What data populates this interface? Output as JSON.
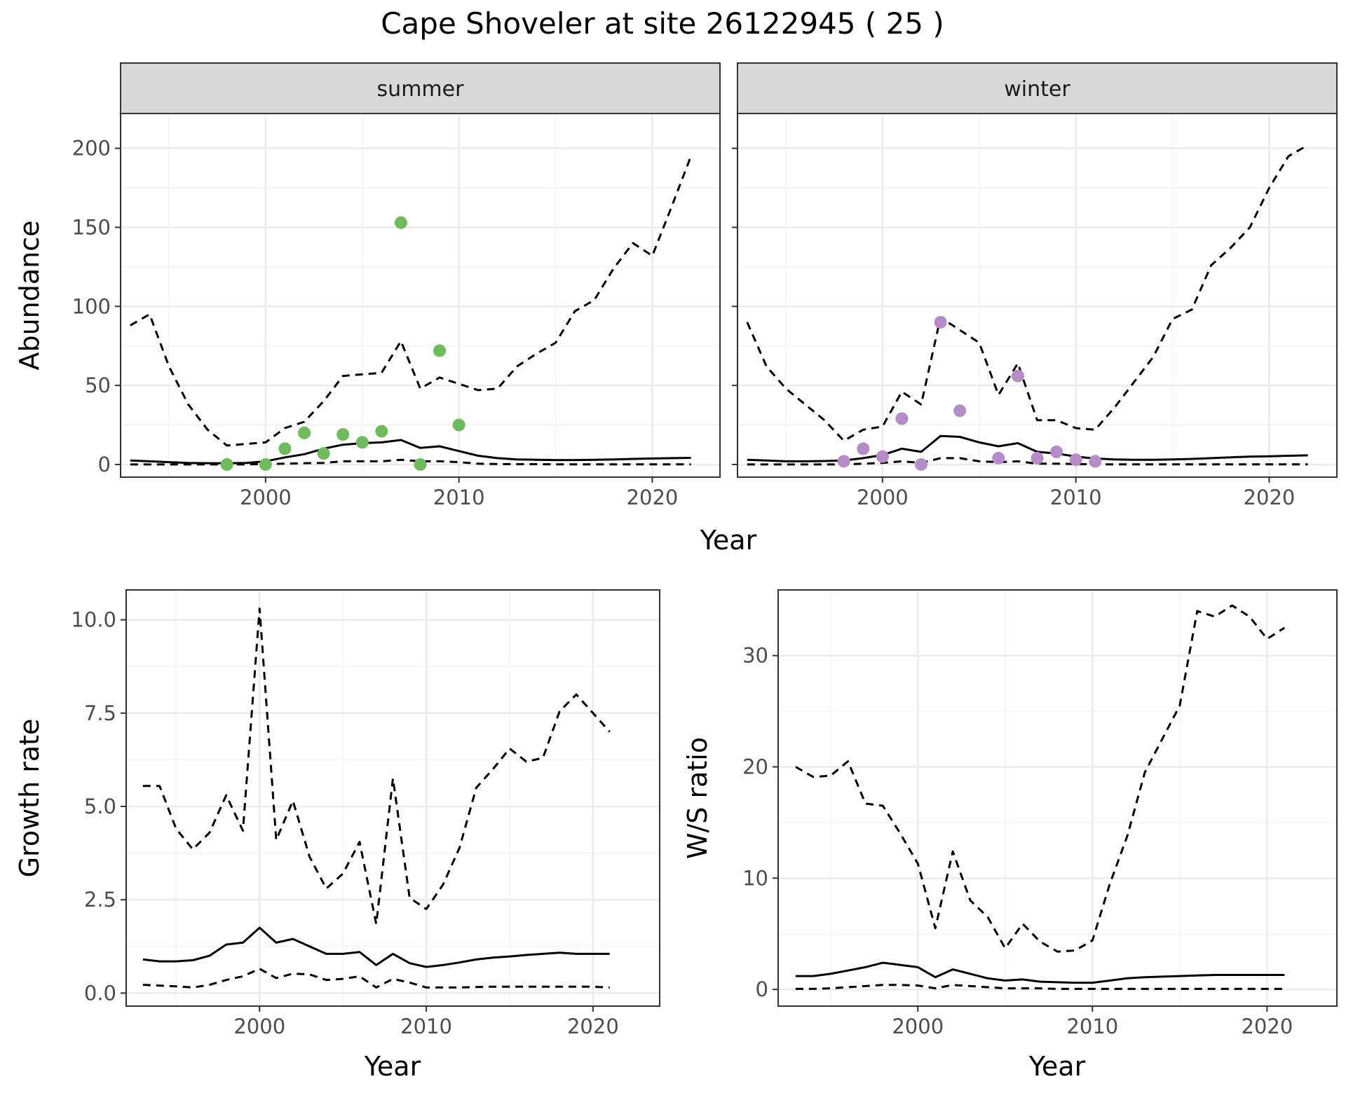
{
  "title": "Cape Shoveler at site 26122945 ( 25 )",
  "colors": {
    "summer_points": "#6dbb5a",
    "winter_points": "#b48cc8",
    "line": "#000000",
    "strip_bg": "#d9d9d9",
    "grid_major": "#ebebeb"
  },
  "chart_data": [
    {
      "type": "line",
      "panel": "abundance-summer",
      "strip": "summer",
      "ylabel": "Abundance",
      "xlabel": "Year",
      "xlim": [
        1992.5,
        2023.5
      ],
      "ylim": [
        -8,
        222
      ],
      "xticks": [
        2000,
        2010,
        2020
      ],
      "yticks": [
        0,
        50,
        100,
        150,
        200
      ],
      "x": [
        1993,
        1994,
        1995,
        1996,
        1997,
        1998,
        1999,
        2000,
        2001,
        2002,
        2003,
        2004,
        2005,
        2006,
        2007,
        2008,
        2009,
        2010,
        2011,
        2012,
        2013,
        2014,
        2015,
        2016,
        2017,
        2018,
        2019,
        2020,
        2021,
        2022
      ],
      "series": [
        {
          "style": "solid",
          "values": [
            2.5,
            2,
            1.5,
            1,
            0.8,
            0.8,
            1,
            2,
            4.5,
            6.5,
            10,
            12.5,
            13.5,
            14,
            15.5,
            10.5,
            11.5,
            8.5,
            5.5,
            4,
            3.2,
            3,
            2.8,
            2.8,
            3,
            3.2,
            3.5,
            3.8,
            4,
            4.2
          ]
        },
        {
          "style": "dashed-lower",
          "values": [
            0,
            0,
            0,
            0,
            0,
            0,
            0,
            0.3,
            0.5,
            0.8,
            1,
            2,
            2,
            2,
            3,
            2,
            2,
            1.5,
            0.5,
            0.3,
            0.2,
            0.2,
            0.1,
            0.1,
            0.1,
            0.1,
            0.1,
            0.1,
            0.1,
            0.1
          ]
        },
        {
          "style": "dashed-upper",
          "values": [
            88,
            95,
            62,
            38,
            22,
            12,
            13,
            14,
            23,
            27,
            40,
            56,
            57,
            58,
            78,
            48,
            55,
            51,
            47,
            48,
            62,
            70,
            77,
            97,
            104,
            124,
            140,
            132,
            163,
            195
          ]
        }
      ],
      "points": {
        "x": [
          1998,
          2000,
          2001,
          2002,
          2003,
          2004,
          2005,
          2006,
          2007,
          2008,
          2009,
          2010
        ],
        "y": [
          0,
          0,
          10,
          20,
          7,
          19,
          14,
          21,
          153,
          0,
          72,
          25
        ]
      }
    },
    {
      "type": "line",
      "panel": "abundance-winter",
      "strip": "winter",
      "xlabel": "Year",
      "xlim": [
        1992.5,
        2023.5
      ],
      "ylim": [
        -8,
        222
      ],
      "xticks": [
        2000,
        2010,
        2020
      ],
      "x": [
        1993,
        1994,
        1995,
        1996,
        1997,
        1998,
        1999,
        2000,
        2001,
        2002,
        2003,
        2004,
        2005,
        2006,
        2007,
        2008,
        2009,
        2010,
        2011,
        2012,
        2013,
        2014,
        2015,
        2016,
        2017,
        2018,
        2019,
        2020,
        2021,
        2022
      ],
      "series": [
        {
          "style": "solid",
          "values": [
            3,
            2.5,
            2,
            2,
            2.2,
            2.5,
            4,
            6,
            10,
            8,
            18,
            17.5,
            14,
            11.5,
            13.5,
            8,
            7,
            5,
            3.8,
            3.2,
            3,
            3,
            3.2,
            3.5,
            4,
            4.5,
            5,
            5.2,
            5.5,
            5.8
          ]
        },
        {
          "style": "dashed-lower",
          "values": [
            0,
            0,
            0,
            0,
            0,
            0,
            0.5,
            1,
            2,
            1,
            4,
            4,
            2,
            1.5,
            2,
            0.5,
            0.5,
            0.3,
            0.1,
            0.1,
            0.1,
            0.1,
            0.1,
            0.1,
            0.1,
            0.1,
            0.1,
            0.1,
            0.1,
            0.1
          ]
        },
        {
          "style": "dashed-upper",
          "values": [
            90,
            62,
            48,
            38,
            28,
            15,
            22,
            24,
            46,
            38,
            93,
            85,
            77,
            44,
            64,
            28,
            28,
            23,
            22,
            36,
            52,
            68,
            92,
            98,
            126,
            137,
            150,
            175,
            195,
            202
          ]
        }
      ],
      "points": {
        "x": [
          1998,
          1999,
          2000,
          2001,
          2002,
          2003,
          2004,
          2006,
          2007,
          2008,
          2009,
          2010,
          2011
        ],
        "y": [
          2,
          10,
          5,
          29,
          0,
          90,
          34,
          4,
          56,
          4,
          8,
          3,
          2
        ]
      }
    },
    {
      "type": "line",
      "panel": "growth-rate",
      "ylabel": "Growth rate",
      "xlabel": "Year",
      "xlim": [
        1992,
        2024
      ],
      "ylim": [
        -0.35,
        10.8
      ],
      "xticks": [
        2000,
        2010,
        2020
      ],
      "yticks": [
        0.0,
        2.5,
        5.0,
        7.5,
        10.0
      ],
      "ytick_labels": [
        "0.0",
        "2.5",
        "5.0",
        "7.5",
        "10.0"
      ],
      "x": [
        1993,
        1994,
        1995,
        1996,
        1997,
        1998,
        1999,
        2000,
        2001,
        2002,
        2003,
        2004,
        2005,
        2006,
        2007,
        2008,
        2009,
        2010,
        2011,
        2012,
        2013,
        2014,
        2015,
        2016,
        2017,
        2018,
        2019,
        2020,
        2021
      ],
      "series": [
        {
          "style": "solid",
          "values": [
            0.9,
            0.85,
            0.85,
            0.88,
            1.0,
            1.3,
            1.35,
            1.75,
            1.35,
            1.45,
            1.25,
            1.05,
            1.05,
            1.1,
            0.75,
            1.05,
            0.8,
            0.7,
            0.75,
            0.82,
            0.9,
            0.95,
            0.98,
            1.02,
            1.05,
            1.08,
            1.05,
            1.05,
            1.05
          ]
        },
        {
          "style": "dashed-lower",
          "values": [
            0.22,
            0.2,
            0.18,
            0.15,
            0.22,
            0.35,
            0.45,
            0.65,
            0.4,
            0.52,
            0.5,
            0.35,
            0.38,
            0.45,
            0.15,
            0.38,
            0.28,
            0.15,
            0.15,
            0.15,
            0.16,
            0.17,
            0.17,
            0.17,
            0.17,
            0.17,
            0.17,
            0.17,
            0.15
          ]
        },
        {
          "style": "dashed-upper",
          "values": [
            5.55,
            5.55,
            4.4,
            3.85,
            4.3,
            5.3,
            4.35,
            10.3,
            4.1,
            5.15,
            3.65,
            2.8,
            3.2,
            4.05,
            1.85,
            5.75,
            2.55,
            2.25,
            2.9,
            3.9,
            5.5,
            6.0,
            6.55,
            6.2,
            6.3,
            7.55,
            8.0,
            7.5,
            7.0
          ]
        }
      ]
    },
    {
      "type": "line",
      "panel": "ws-ratio",
      "ylabel": "W/S ratio",
      "xlabel": "Year",
      "xlim": [
        1992,
        2024
      ],
      "ylim": [
        -1.5,
        35.9
      ],
      "xticks": [
        2000,
        2010,
        2020
      ],
      "yticks": [
        0,
        10,
        20,
        30
      ],
      "x": [
        1993,
        1994,
        1995,
        1996,
        1997,
        1998,
        1999,
        2000,
        2001,
        2002,
        2003,
        2004,
        2005,
        2006,
        2007,
        2008,
        2009,
        2010,
        2011,
        2012,
        2013,
        2014,
        2015,
        2016,
        2017,
        2018,
        2019,
        2020,
        2021
      ],
      "series": [
        {
          "style": "solid",
          "values": [
            1.2,
            1.2,
            1.4,
            1.7,
            2.0,
            2.4,
            2.2,
            2.0,
            1.1,
            1.8,
            1.4,
            1.0,
            0.8,
            0.9,
            0.7,
            0.65,
            0.6,
            0.6,
            0.8,
            1.0,
            1.1,
            1.15,
            1.2,
            1.25,
            1.3,
            1.3,
            1.3,
            1.3,
            1.3
          ]
        },
        {
          "style": "dashed-lower",
          "values": [
            0.05,
            0.05,
            0.1,
            0.2,
            0.3,
            0.4,
            0.4,
            0.35,
            0.1,
            0.4,
            0.3,
            0.2,
            0.1,
            0.1,
            0.1,
            0.05,
            0.05,
            0.05,
            0.05,
            0.05,
            0.05,
            0.05,
            0.05,
            0.05,
            0.05,
            0.05,
            0.05,
            0.05,
            0.05
          ]
        },
        {
          "style": "dashed-upper",
          "values": [
            20,
            19.1,
            19.2,
            20.5,
            16.7,
            16.5,
            14.0,
            11.3,
            5.5,
            12.4,
            8.0,
            6.5,
            3.7,
            5.9,
            4.3,
            3.4,
            3.5,
            4.4,
            9.5,
            13.8,
            19.5,
            22.5,
            25.5,
            34.0,
            33.5,
            34.5,
            33.5,
            31.5,
            32.5
          ]
        }
      ]
    }
  ]
}
